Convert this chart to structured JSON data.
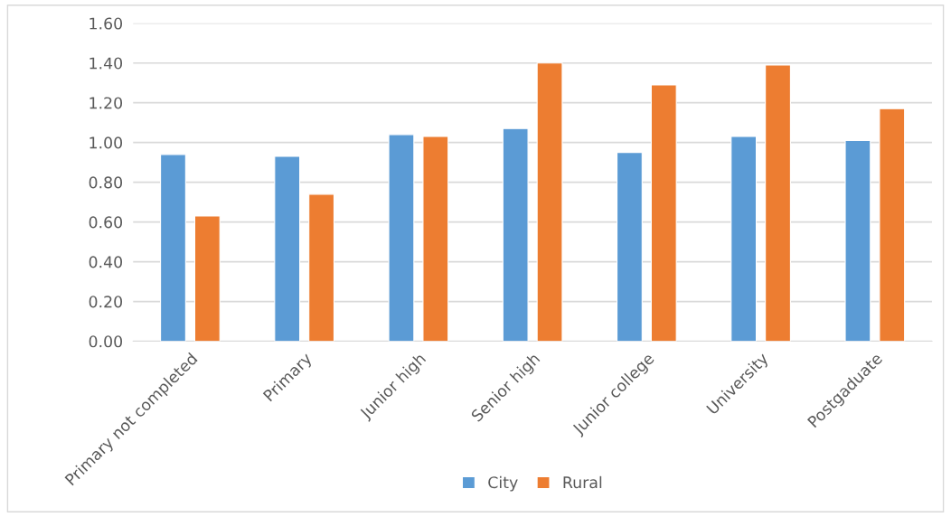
{
  "chart_data": {
    "type": "bar",
    "categories": [
      "Primary not completed",
      "Primary",
      "Junior high",
      "Senior high",
      "Junior college",
      "University",
      "Postgaduate"
    ],
    "series": [
      {
        "name": "City",
        "color": "#5b9bd5",
        "values": [
          0.94,
          0.93,
          1.04,
          1.07,
          0.95,
          1.03,
          1.01
        ]
      },
      {
        "name": "Rural",
        "color": "#ed7d31",
        "values": [
          0.63,
          0.74,
          1.03,
          1.4,
          1.29,
          1.39,
          1.17
        ]
      }
    ],
    "ylim": [
      0,
      1.6
    ],
    "yticks": [
      {
        "value": 0,
        "label": "0.00"
      },
      {
        "value": 0.2,
        "label": "0.20"
      },
      {
        "value": 0.4,
        "label": "0.40"
      },
      {
        "value": 0.6,
        "label": "0.60"
      },
      {
        "value": 0.8,
        "label": "0.80"
      },
      {
        "value": 1.0,
        "label": "1.00"
      },
      {
        "value": 1.2,
        "label": "1.20"
      },
      {
        "value": 1.4,
        "label": "1.40"
      },
      {
        "value": 1.6,
        "label": "1.60"
      }
    ],
    "grid": "y",
    "legend": "bottom"
  }
}
